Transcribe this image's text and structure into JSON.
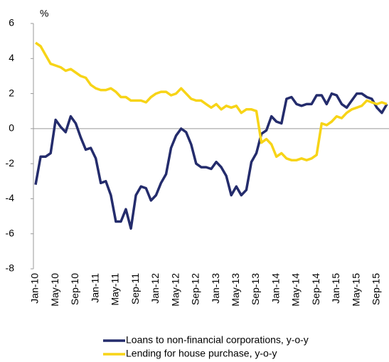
{
  "chart_data": {
    "type": "line",
    "ylabel": "%",
    "categories": [
      "Jan-10",
      null,
      null,
      null,
      "May-10",
      null,
      null,
      null,
      "Sep-10",
      null,
      null,
      null,
      "Jan-11",
      null,
      null,
      null,
      "May-11",
      null,
      null,
      null,
      "Sep-11",
      null,
      null,
      null,
      "Jan-12",
      null,
      null,
      null,
      "May-12",
      null,
      null,
      null,
      "Sep-12",
      null,
      null,
      null,
      "Jan-13",
      null,
      null,
      null,
      "May-13",
      null,
      null,
      null,
      "Sep-13",
      null,
      null,
      null,
      "Jan-14",
      null,
      null,
      null,
      "May-14",
      null,
      null,
      null,
      "Sep-14",
      null,
      null,
      null,
      "Jan-15",
      null,
      null,
      null,
      "May-15",
      null,
      null,
      null,
      "Sep-15",
      null,
      null
    ],
    "series": [
      {
        "name": "Loans to non-financial corporations, y-o-y",
        "color": "#242c6c",
        "values": [
          -3.2,
          -1.6,
          -1.6,
          -1.4,
          0.5,
          0.1,
          -0.2,
          0.7,
          0.3,
          -0.5,
          -1.2,
          -1.1,
          -1.7,
          -3.1,
          -3.0,
          -3.8,
          -5.3,
          -5.3,
          -4.6,
          -5.7,
          -3.8,
          -3.3,
          -3.4,
          -4.1,
          -3.8,
          -3.1,
          -2.6,
          -1.1,
          -0.4,
          0.0,
          -0.2,
          -0.9,
          -2.0,
          -2.2,
          -2.2,
          -2.3,
          -1.9,
          -2.2,
          -2.7,
          -3.8,
          -3.3,
          -3.8,
          -3.5,
          -1.9,
          -1.4,
          -0.3,
          -0.1,
          0.7,
          0.4,
          0.3,
          1.7,
          1.8,
          1.4,
          1.3,
          1.4,
          1.4,
          1.9,
          1.9,
          1.4,
          2.0,
          1.9,
          1.4,
          1.2,
          1.6,
          2.0,
          2.0,
          1.8,
          1.7,
          1.2,
          0.9,
          1.4
        ]
      },
      {
        "name": "Lending for house purchase, y-o-y",
        "color": "#f7d417",
        "values": [
          4.9,
          4.7,
          4.2,
          3.7,
          3.6,
          3.5,
          3.3,
          3.4,
          3.2,
          3.0,
          2.9,
          2.5,
          2.3,
          2.2,
          2.2,
          2.3,
          2.1,
          1.8,
          1.8,
          1.6,
          1.6,
          1.6,
          1.5,
          1.8,
          2.0,
          2.1,
          2.1,
          1.9,
          2.0,
          2.3,
          2.0,
          1.7,
          1.6,
          1.6,
          1.4,
          1.2,
          1.4,
          1.1,
          1.3,
          1.2,
          1.3,
          0.9,
          1.1,
          1.1,
          1.0,
          -0.8,
          -0.6,
          -0.9,
          -1.6,
          -1.4,
          -1.7,
          -1.8,
          -1.8,
          -1.7,
          -1.8,
          -1.7,
          -1.5,
          0.3,
          0.2,
          0.4,
          0.7,
          0.6,
          0.9,
          1.1,
          1.2,
          1.3,
          1.6,
          1.5,
          1.4,
          1.5,
          1.4
        ]
      }
    ],
    "ylim": [
      -8,
      6
    ],
    "yticks": [
      6,
      4,
      2,
      0,
      -2,
      -4,
      -6,
      -8
    ],
    "grid": false
  }
}
